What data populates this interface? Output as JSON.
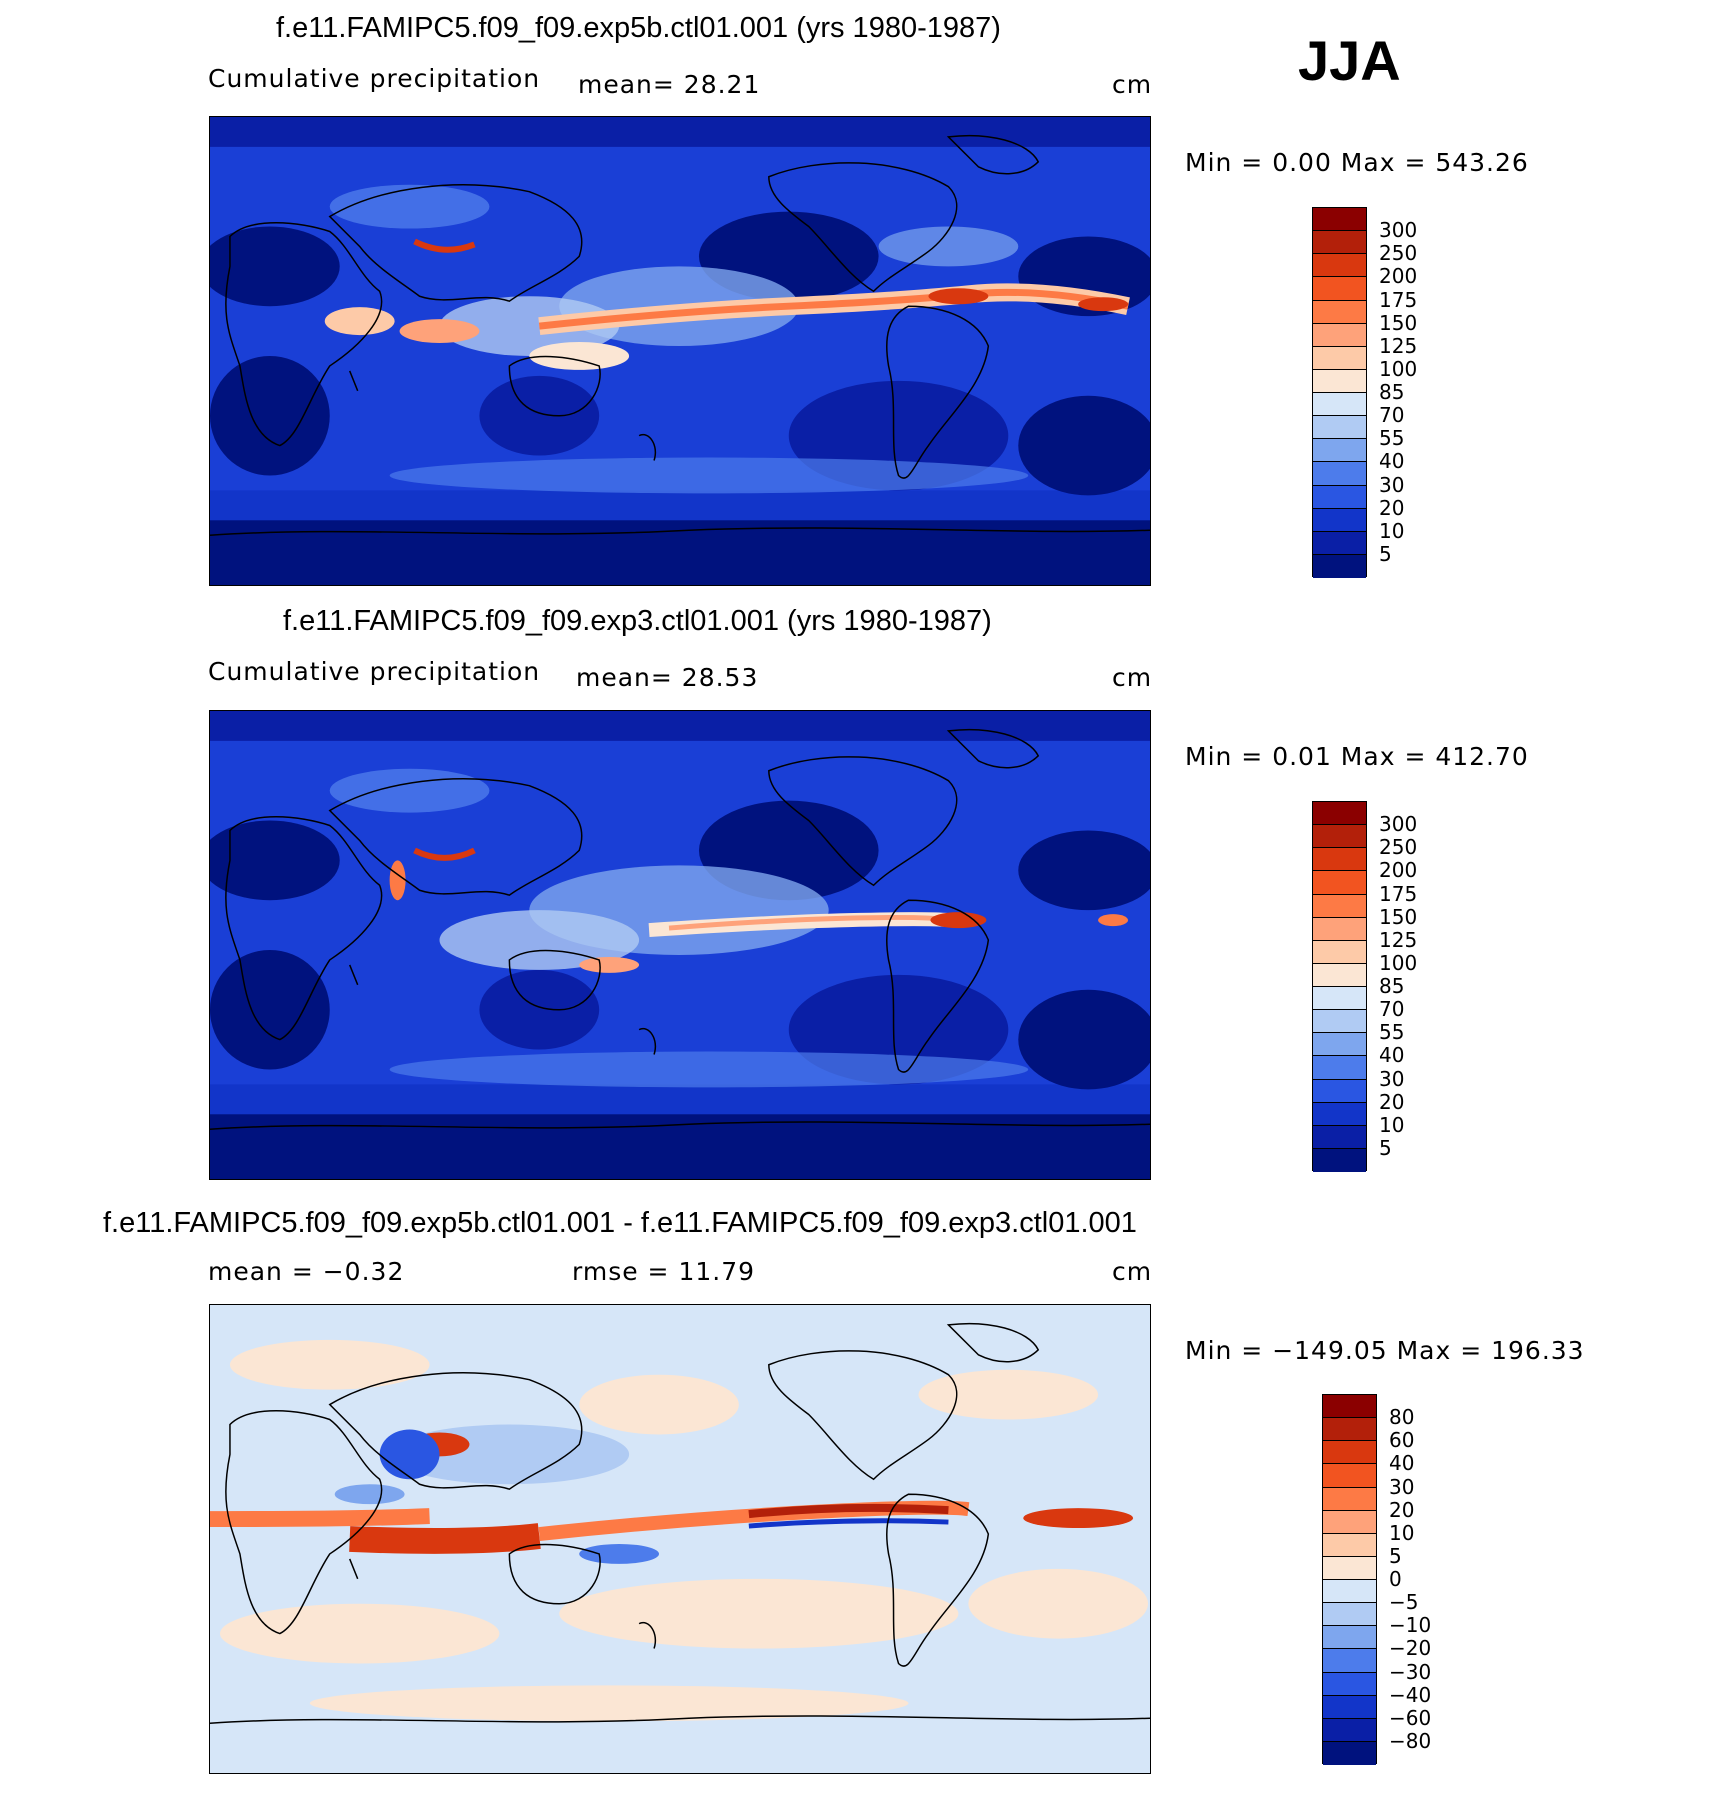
{
  "season": "JJA",
  "panels": [
    {
      "title": "f.e11.FAMIPC5.f09_f09.exp5b.ctl01.001 (yrs 1980-1987)",
      "variable": "Cumulative precipitation",
      "stat1": "mean=   28.21",
      "units": "cm",
      "minmax": "Min =     0.00  Max  =  543.26",
      "colorbar": {
        "levels": [
          "300",
          "250",
          "200",
          "175",
          "150",
          "125",
          "100",
          "85",
          "70",
          "55",
          "40",
          "30",
          "20",
          "10",
          "5"
        ],
        "colors": [
          "#8b0000",
          "#b3200a",
          "#d9380f",
          "#f25420",
          "#fd7a45",
          "#fea27a",
          "#fdcaa8",
          "#fbe6d4",
          "#d6e6f8",
          "#b0cbf3",
          "#7ea6ee",
          "#4d7ceb",
          "#2a56e2",
          "#1235c9",
          "#0a1fa6",
          "#00127e"
        ]
      }
    },
    {
      "title": "f.e11.FAMIPC5.f09_f09.exp3.ctl01.001 (yrs 1980-1987)",
      "variable": "Cumulative precipitation",
      "stat1": "mean=   28.53",
      "units": "cm",
      "minmax": "Min =     0.01  Max  =  412.70",
      "colorbar": {
        "levels": [
          "300",
          "250",
          "200",
          "175",
          "150",
          "125",
          "100",
          "85",
          "70",
          "55",
          "40",
          "30",
          "20",
          "10",
          "5"
        ],
        "colors": [
          "#8b0000",
          "#b3200a",
          "#d9380f",
          "#f25420",
          "#fd7a45",
          "#fea27a",
          "#fdcaa8",
          "#fbe6d4",
          "#d6e6f8",
          "#b0cbf3",
          "#7ea6ee",
          "#4d7ceb",
          "#2a56e2",
          "#1235c9",
          "#0a1fa6",
          "#00127e"
        ]
      }
    },
    {
      "title": "f.e11.FAMIPC5.f09_f09.exp5b.ctl01.001 - f.e11.FAMIPC5.f09_f09.exp3.ctl01.001",
      "variable": "mean =   −0.32",
      "stat1": "rmse =    11.79",
      "units": "cm",
      "minmax": "Min = −149.05  Max  =  196.33",
      "colorbar": {
        "levels": [
          "80",
          "60",
          "40",
          "30",
          "20",
          "10",
          "5",
          "0",
          "−5",
          "−10",
          "−20",
          "−30",
          "−40",
          "−60",
          "−80"
        ],
        "colors": [
          "#8b0000",
          "#b3200a",
          "#d9380f",
          "#f25420",
          "#fd7a45",
          "#fea27a",
          "#fdcaa8",
          "#fbe6d4",
          "#d6e6f8",
          "#b0cbf3",
          "#7ea6ee",
          "#4d7ceb",
          "#2a56e2",
          "#1235c9",
          "#0a1fa6",
          "#00127e"
        ]
      }
    }
  ],
  "map_colors": {
    "precip_background": "#1a3fd6",
    "diff_background": "#d6e6f8",
    "coastline": "#000000"
  }
}
